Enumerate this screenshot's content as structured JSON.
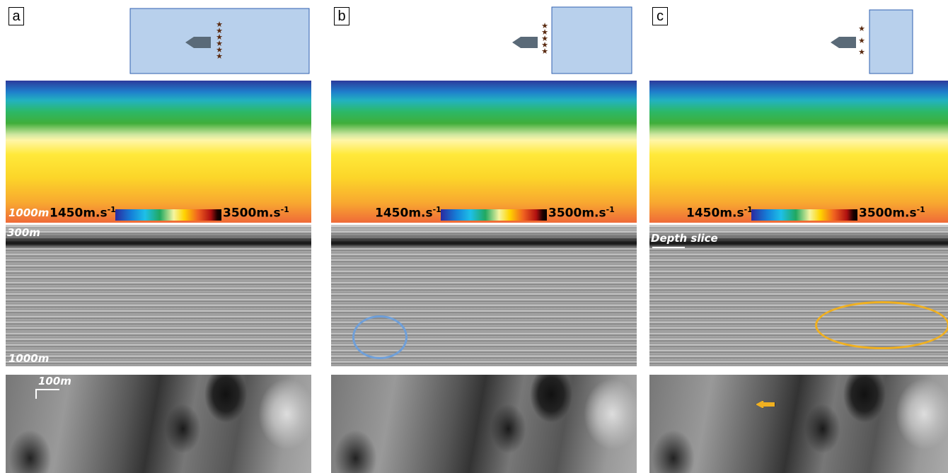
{
  "panels": [
    {
      "label": "a",
      "velocity_depth": "1000m",
      "velocity_min": {
        "text": "1450m.s",
        "sup": "-1"
      },
      "velocity_max": {
        "text": "3500m.s",
        "sup": "-1"
      },
      "seismic_top": "300m",
      "seismic_bottom": "1000m",
      "slice_scale": "100m"
    },
    {
      "label": "b",
      "velocity_min": {
        "text": "1450m.s",
        "sup": "-1"
      },
      "velocity_max": {
        "text": "3500m.s",
        "sup": "-1"
      }
    },
    {
      "label": "c",
      "velocity_min": {
        "text": "1450m.s",
        "sup": "-1"
      },
      "velocity_max": {
        "text": "3500m.s",
        "sup": "-1"
      },
      "seismic_annotation": "Depth slice"
    }
  ]
}
